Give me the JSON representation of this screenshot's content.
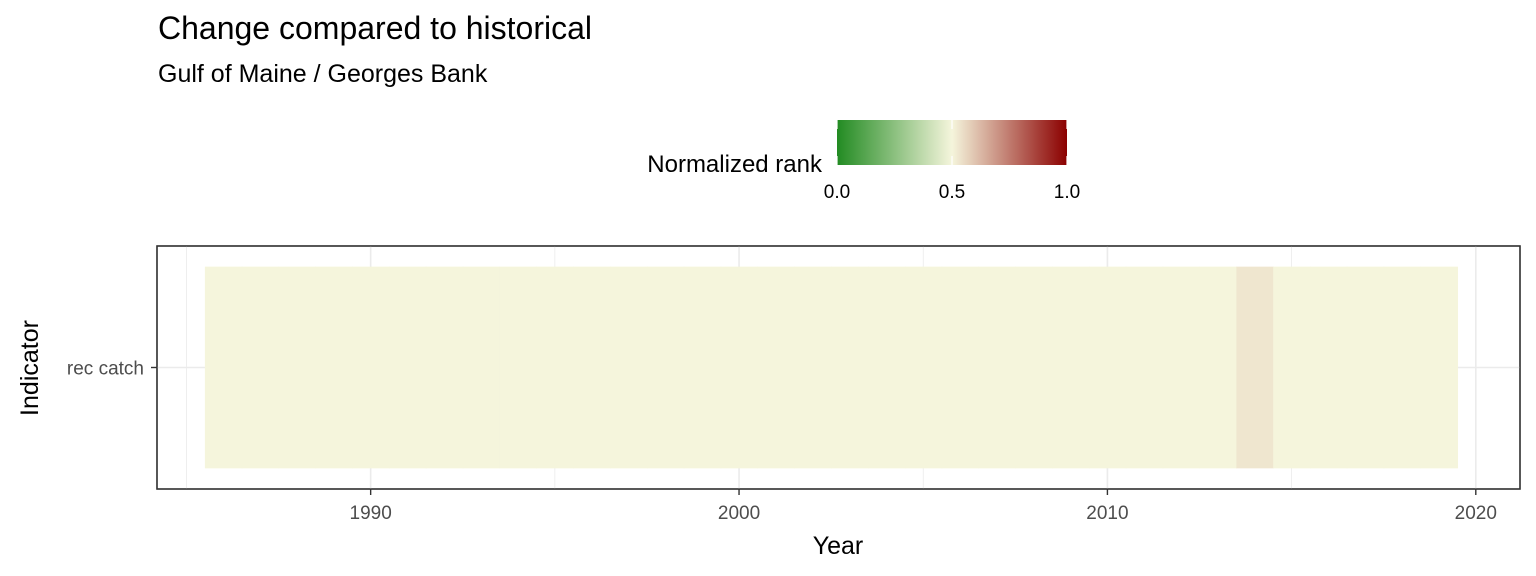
{
  "chart_data": {
    "type": "heatmap",
    "title": "Change compared to historical",
    "subtitle": "Gulf of Maine / Georges Bank",
    "xlabel": "Year",
    "ylabel": "Indicator",
    "xlim": [
      1984.2,
      2021.2
    ],
    "x_ticks": [
      1990,
      2000,
      2010,
      2020
    ],
    "x_tick_labels": [
      "1990",
      "2000",
      "2010",
      "2020"
    ],
    "categories": [
      "rec catch"
    ],
    "grid": true,
    "legend": {
      "title": "Normalized rank",
      "position": "top",
      "ticks": [
        0.0,
        0.5,
        1.0
      ],
      "tick_labels": [
        "0.0",
        "0.5",
        "1.0"
      ],
      "colors": [
        "#228B22",
        "#F5F5DC",
        "#8B0000"
      ]
    },
    "series": [
      {
        "indicator": "rec catch",
        "cells": [
          {
            "x": 1986,
            "value": 0.5
          },
          {
            "x": 1987,
            "value": 0.5
          },
          {
            "x": 1988,
            "value": 0.5
          },
          {
            "x": 1989,
            "value": 0.5
          },
          {
            "x": 1990,
            "value": 0.5
          },
          {
            "x": 1991,
            "value": 0.5
          },
          {
            "x": 1992,
            "value": 0.5
          },
          {
            "x": 1993,
            "value": 0.5
          },
          {
            "x": 1994,
            "value": 0.5
          },
          {
            "x": 1995,
            "value": 0.5
          },
          {
            "x": 1996,
            "value": 0.5
          },
          {
            "x": 1997,
            "value": 0.5
          },
          {
            "x": 1998,
            "value": 0.5
          },
          {
            "x": 1999,
            "value": 0.5
          },
          {
            "x": 2000,
            "value": 0.5
          },
          {
            "x": 2001,
            "value": 0.5
          },
          {
            "x": 2002,
            "value": 0.5
          },
          {
            "x": 2003,
            "value": 0.5
          },
          {
            "x": 2004,
            "value": 0.5
          },
          {
            "x": 2005,
            "value": 0.5
          },
          {
            "x": 2006,
            "value": 0.5
          },
          {
            "x": 2007,
            "value": 0.5
          },
          {
            "x": 2008,
            "value": 0.5
          },
          {
            "x": 2009,
            "value": 0.5
          },
          {
            "x": 2010,
            "value": 0.5
          },
          {
            "x": 2011,
            "value": 0.5
          },
          {
            "x": 2012,
            "value": 0.5
          },
          {
            "x": 2013,
            "value": 0.5
          },
          {
            "x": 2014,
            "value": 0.53
          },
          {
            "x": 2015,
            "value": 0.5
          },
          {
            "x": 2016,
            "value": 0.5
          },
          {
            "x": 2017,
            "value": 0.5
          },
          {
            "x": 2018,
            "value": 0.5
          },
          {
            "x": 2019,
            "value": 0.5
          }
        ]
      }
    ]
  }
}
